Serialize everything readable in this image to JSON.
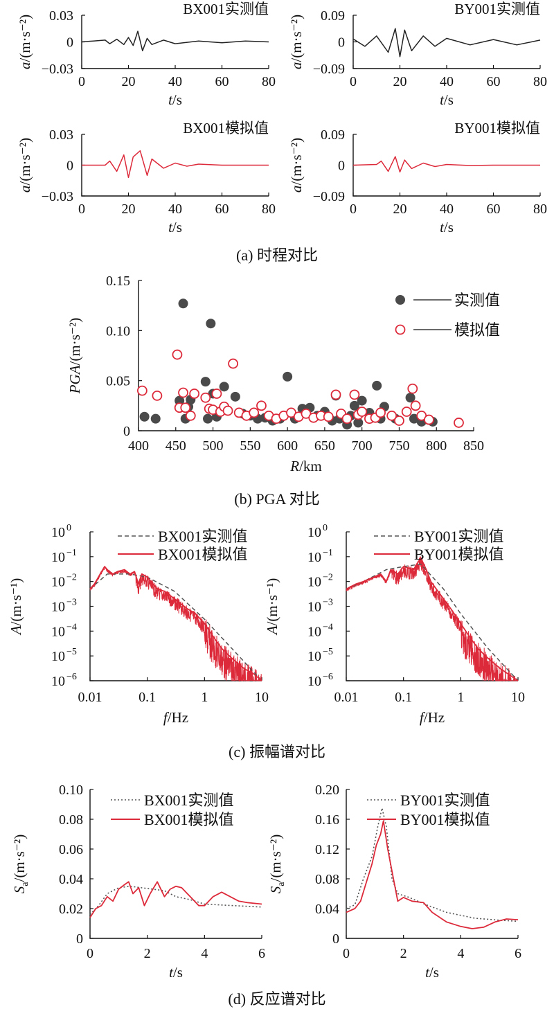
{
  "captions": {
    "a": "(a) 时程对比",
    "b": "(b) PGA 对比",
    "c": "(c) 振幅谱对比",
    "d": "(d) 反应谱对比"
  },
  "colors": {
    "measured": "#222222",
    "simulated": "#dd2a3a",
    "dashed": "#555555",
    "axis": "#111111"
  },
  "chart_data": [
    {
      "id": "a1",
      "type": "line",
      "title": "BX001实测值",
      "xlabel": "t/s",
      "ylabel": "a/(m·s⁻²)",
      "xlim": [
        0,
        80
      ],
      "ylim": [
        -0.03,
        0.03
      ],
      "xticks": [
        0,
        20,
        40,
        60,
        80
      ],
      "yticks": [
        0.03,
        0,
        -0.03
      ],
      "ytick_labels": [
        "0.03",
        "0",
        "−0.03"
      ],
      "series": [
        {
          "kind": "measured",
          "x": [
            0,
            5,
            10,
            12,
            15,
            18,
            20,
            22,
            24,
            26,
            28,
            30,
            35,
            40,
            50,
            60,
            70,
            80
          ],
          "y": [
            0,
            0.001,
            0.002,
            -0.002,
            0.003,
            -0.003,
            0.005,
            -0.004,
            0.012,
            -0.01,
            0.004,
            -0.003,
            0.002,
            -0.002,
            0.001,
            -0.001,
            0.001,
            0
          ]
        }
      ]
    },
    {
      "id": "a2",
      "type": "line",
      "title": "BY001实测值",
      "xlabel": "t/s",
      "ylabel": "a/(m·s⁻²)",
      "xlim": [
        0,
        80
      ],
      "ylim": [
        -0.09,
        0.09
      ],
      "xticks": [
        0,
        20,
        40,
        60,
        80
      ],
      "yticks": [
        0.09,
        0,
        -0.09
      ],
      "ytick_labels": [
        "0.09",
        "0",
        "−0.09"
      ],
      "series": [
        {
          "kind": "measured",
          "x": [
            0,
            5,
            10,
            15,
            18,
            20,
            22,
            25,
            30,
            35,
            40,
            50,
            60,
            70,
            80
          ],
          "y": [
            0.01,
            -0.015,
            0.02,
            -0.035,
            0.045,
            -0.05,
            0.04,
            -0.03,
            0.02,
            -0.015,
            0.012,
            -0.01,
            0.008,
            -0.01,
            0.006
          ]
        }
      ]
    },
    {
      "id": "a3",
      "type": "line",
      "title": "BX001模拟值",
      "xlabel": "t/s",
      "ylabel": "a/(m·s⁻²)",
      "xlim": [
        0,
        80
      ],
      "ylim": [
        -0.03,
        0.03
      ],
      "xticks": [
        0,
        20,
        40,
        60,
        80
      ],
      "yticks": [
        0.03,
        0,
        -0.03
      ],
      "ytick_labels": [
        "0.03",
        "0",
        "−0.03"
      ],
      "series": [
        {
          "kind": "simulated",
          "x": [
            0,
            10,
            12,
            15,
            18,
            20,
            22,
            25,
            28,
            30,
            35,
            40,
            45,
            50,
            60,
            80
          ],
          "y": [
            0,
            0,
            0.004,
            -0.006,
            0.01,
            -0.012,
            0.008,
            0.014,
            -0.01,
            0.006,
            -0.003,
            0.002,
            -0.001,
            0.001,
            0,
            0
          ]
        }
      ]
    },
    {
      "id": "a4",
      "type": "line",
      "title": "BY001模拟值",
      "xlabel": "t/s",
      "ylabel": "a/(m·s⁻²)",
      "xlim": [
        0,
        80
      ],
      "ylim": [
        -0.09,
        0.09
      ],
      "xticks": [
        0,
        20,
        40,
        60,
        80
      ],
      "yticks": [
        0.09,
        0,
        -0.09
      ],
      "ytick_labels": [
        "0.09",
        "0",
        "−0.09"
      ],
      "series": [
        {
          "kind": "simulated",
          "x": [
            0,
            10,
            12,
            15,
            18,
            20,
            22,
            25,
            30,
            35,
            40,
            50,
            60,
            80
          ],
          "y": [
            0,
            0.002,
            0.012,
            -0.018,
            0.025,
            -0.02,
            0.015,
            -0.01,
            0.006,
            -0.004,
            0.002,
            -0.001,
            0,
            0
          ]
        }
      ]
    },
    {
      "id": "b",
      "type": "scatter",
      "xlabel": "R/km",
      "ylabel": "PGA/(m·s⁻²)",
      "xlim": [
        400,
        850
      ],
      "ylim": [
        0,
        0.15
      ],
      "xticks": [
        400,
        450,
        500,
        550,
        600,
        650,
        700,
        750,
        800,
        850
      ],
      "yticks": [
        0,
        0.05,
        0.1,
        0.15
      ],
      "ytick_labels": [
        "0",
        "0.05",
        "0.10",
        "0.15"
      ],
      "legend": {
        "position": "top-right",
        "entries": [
          "实测值",
          "模拟值"
        ]
      },
      "series": [
        {
          "name": "实测值",
          "kind": "measured",
          "x": [
            408,
            423,
            455,
            460,
            463,
            467,
            470,
            490,
            493,
            497,
            500,
            505,
            515,
            520,
            530,
            540,
            550,
            560,
            570,
            580,
            590,
            600,
            610,
            620,
            625,
            630,
            640,
            650,
            660,
            665,
            670,
            680,
            685,
            690,
            695,
            700,
            710,
            720,
            725,
            730,
            745,
            765,
            770,
            780,
            795
          ],
          "y": [
            0.014,
            0.012,
            0.03,
            0.127,
            0.012,
            0.024,
            0.031,
            0.049,
            0.012,
            0.107,
            0.037,
            0.014,
            0.044,
            0.02,
            0.034,
            0.017,
            0.015,
            0.012,
            0.013,
            0.01,
            0.012,
            0.054,
            0.012,
            0.022,
            0.018,
            0.023,
            0.015,
            0.019,
            0.01,
            0.035,
            0.012,
            0.006,
            0.015,
            0.025,
            0.008,
            0.03,
            0.018,
            0.045,
            0.012,
            0.024,
            0.012,
            0.033,
            0.012,
            0.009,
            0.009
          ]
        },
        {
          "name": "模拟值",
          "kind": "simulated",
          "x": [
            405,
            425,
            452,
            455,
            460,
            463,
            470,
            475,
            490,
            495,
            500,
            505,
            510,
            515,
            520,
            527,
            535,
            545,
            555,
            565,
            575,
            585,
            595,
            605,
            615,
            625,
            635,
            645,
            655,
            665,
            672,
            680,
            690,
            695,
            700,
            710,
            718,
            725,
            740,
            750,
            760,
            768,
            772,
            780,
            790,
            830
          ],
          "y": [
            0.04,
            0.035,
            0.076,
            0.023,
            0.038,
            0.023,
            0.015,
            0.037,
            0.033,
            0.022,
            0.021,
            0.037,
            0.019,
            0.024,
            0.02,
            0.067,
            0.018,
            0.015,
            0.018,
            0.025,
            0.015,
            0.012,
            0.015,
            0.018,
            0.014,
            0.017,
            0.013,
            0.015,
            0.014,
            0.036,
            0.017,
            0.012,
            0.036,
            0.016,
            0.019,
            0.012,
            0.013,
            0.018,
            0.015,
            0.01,
            0.019,
            0.042,
            0.025,
            0.015,
            0.011,
            0.008
          ]
        }
      ]
    },
    {
      "id": "c1",
      "type": "line",
      "xlabel": "f/Hz",
      "ylabel": "A/(m·s⁻¹)",
      "xscale": "log",
      "yscale": "log",
      "xlim": [
        0.01,
        10
      ],
      "ylim": [
        1e-06,
        1
      ],
      "xticks": [
        0.01,
        0.1,
        1,
        10
      ],
      "xtick_labels": [
        "0.01",
        "0.1",
        "1",
        "10"
      ],
      "yticks": [
        1,
        0.1,
        0.01,
        0.001,
        0.0001,
        1e-05,
        1e-06
      ],
      "ytick_base": [
        "10",
        "10",
        "10",
        "10",
        "10",
        "10",
        "10"
      ],
      "ytick_exp": [
        "0",
        "−1",
        "−2",
        "−3",
        "−4",
        "−5",
        "−6"
      ],
      "legend": {
        "position": "top-right",
        "entries": [
          "BX001实测值",
          "BX001模拟值"
        ]
      },
      "series": [
        {
          "name": "BX001实测值",
          "kind": "dashed",
          "x": [
            0.01,
            0.02,
            0.05,
            0.1,
            0.3,
            1,
            3,
            10
          ],
          "y": [
            0.005,
            0.02,
            0.02,
            0.015,
            0.004,
            0.0003,
            2e-05,
            1e-06
          ]
        },
        {
          "name": "BX001模拟值",
          "kind": "simulated",
          "x": [
            0.01,
            0.012,
            0.015,
            0.018,
            0.02,
            0.025,
            0.03,
            0.04,
            0.05,
            0.06,
            0.07,
            0.08,
            0.1,
            0.15,
            0.2,
            0.3,
            0.5,
            0.7,
            1,
            1.5,
            2,
            3,
            5,
            7,
            10
          ],
          "y": [
            0.005,
            0.008,
            0.02,
            0.04,
            0.03,
            0.02,
            0.025,
            0.03,
            0.02,
            0.025,
            0.008,
            0.02,
            0.015,
            0.005,
            0.004,
            0.002,
            0.0008,
            0.0005,
            0.0002,
            5e-05,
            2e-05,
            8e-06,
            3e-06,
            2e-06,
            1e-06
          ]
        }
      ]
    },
    {
      "id": "c2",
      "type": "line",
      "xlabel": "f/Hz",
      "ylabel": "A/(m·s⁻¹)",
      "xscale": "log",
      "yscale": "log",
      "xlim": [
        0.01,
        10
      ],
      "ylim": [
        1e-06,
        1
      ],
      "xticks": [
        0.01,
        0.1,
        1,
        10
      ],
      "xtick_labels": [
        "0.01",
        "0.1",
        "1",
        "10"
      ],
      "yticks": [
        1,
        0.1,
        0.01,
        0.001,
        0.0001,
        1e-05,
        1e-06
      ],
      "ytick_base": [
        "10",
        "10",
        "10",
        "10",
        "10",
        "10",
        "10"
      ],
      "ytick_exp": [
        "0",
        "−1",
        "−2",
        "−3",
        "−4",
        "−5",
        "−6"
      ],
      "legend": {
        "position": "top-right",
        "entries": [
          "BY001实测值",
          "BY001模拟值"
        ]
      },
      "series": [
        {
          "name": "BY001实测值",
          "kind": "dashed",
          "x": [
            0.01,
            0.02,
            0.05,
            0.1,
            0.2,
            0.5,
            1,
            3,
            10
          ],
          "y": [
            0.005,
            0.01,
            0.03,
            0.04,
            0.05,
            0.005,
            0.0005,
            2e-05,
            1e-06
          ]
        },
        {
          "name": "BY001模拟值",
          "kind": "simulated",
          "x": [
            0.01,
            0.015,
            0.02,
            0.03,
            0.04,
            0.05,
            0.06,
            0.08,
            0.1,
            0.15,
            0.2,
            0.25,
            0.3,
            0.5,
            0.7,
            1,
            1.5,
            2,
            3,
            5,
            10
          ],
          "y": [
            0.005,
            0.008,
            0.01,
            0.015,
            0.02,
            0.01,
            0.03,
            0.02,
            0.04,
            0.03,
            0.09,
            0.03,
            0.01,
            0.002,
            0.0007,
            0.0002,
            5e-05,
            2e-05,
            8e-06,
            3e-06,
            1e-06
          ]
        }
      ]
    },
    {
      "id": "d1",
      "type": "line",
      "xlabel": "t/s",
      "ylabel": "Sa/(m·s⁻²)",
      "xlim": [
        0,
        6
      ],
      "ylim": [
        0,
        0.1
      ],
      "xticks": [
        0,
        2,
        4,
        6
      ],
      "yticks": [
        0,
        0.02,
        0.04,
        0.06,
        0.08,
        0.1
      ],
      "ytick_labels": [
        "0",
        "0.02",
        "0.04",
        "0.06",
        "0.08",
        "0.10"
      ],
      "legend": {
        "position": "top-right",
        "entries": [
          "BX001实测值",
          "BX001模拟值"
        ]
      },
      "series": [
        {
          "name": "BX001实测值",
          "kind": "dotted",
          "x": [
            0,
            0.3,
            0.6,
            1.0,
            1.4,
            1.8,
            2.2,
            2.6,
            3.0,
            3.5,
            4.0,
            5.0,
            6.0
          ],
          "y": [
            0.016,
            0.022,
            0.03,
            0.034,
            0.035,
            0.034,
            0.033,
            0.032,
            0.028,
            0.026,
            0.023,
            0.022,
            0.021
          ]
        },
        {
          "name": "BX001模拟值",
          "kind": "simulated",
          "x": [
            0,
            0.2,
            0.4,
            0.6,
            0.8,
            1.0,
            1.2,
            1.35,
            1.5,
            1.7,
            1.9,
            2.1,
            2.35,
            2.6,
            2.8,
            3.0,
            3.2,
            3.5,
            3.8,
            4.0,
            4.3,
            4.6,
            4.9,
            5.2,
            5.5,
            6.0
          ],
          "y": [
            0.014,
            0.02,
            0.022,
            0.028,
            0.025,
            0.033,
            0.036,
            0.038,
            0.03,
            0.034,
            0.022,
            0.03,
            0.038,
            0.028,
            0.033,
            0.035,
            0.034,
            0.028,
            0.022,
            0.022,
            0.028,
            0.031,
            0.028,
            0.025,
            0.024,
            0.023
          ]
        }
      ]
    },
    {
      "id": "d2",
      "type": "line",
      "xlabel": "t/s",
      "ylabel": "Sa/(m·s⁻²)",
      "xlim": [
        0,
        6
      ],
      "ylim": [
        0,
        0.2
      ],
      "xticks": [
        0,
        2,
        4,
        6
      ],
      "yticks": [
        0,
        0.04,
        0.08,
        0.12,
        0.16,
        0.2
      ],
      "ytick_labels": [
        "0",
        "0.04",
        "0.08",
        "0.12",
        "0.16",
        "0.20"
      ],
      "legend": {
        "position": "top-right",
        "entries": [
          "BY001实测值",
          "BY001模拟值"
        ]
      },
      "series": [
        {
          "name": "BY001实测值",
          "kind": "dotted",
          "x": [
            0,
            0.3,
            0.6,
            0.9,
            1.1,
            1.25,
            1.4,
            1.6,
            1.8,
            2.2,
            2.8,
            3.5,
            4.5,
            5.5,
            6.0
          ],
          "y": [
            0.04,
            0.045,
            0.08,
            0.11,
            0.15,
            0.175,
            0.15,
            0.08,
            0.06,
            0.055,
            0.045,
            0.035,
            0.027,
            0.024,
            0.023
          ]
        },
        {
          "name": "BY001模拟值",
          "kind": "simulated",
          "x": [
            0,
            0.3,
            0.5,
            0.7,
            0.9,
            1.05,
            1.2,
            1.3,
            1.45,
            1.6,
            1.8,
            2.0,
            2.3,
            2.7,
            3.0,
            3.5,
            4.0,
            4.4,
            4.8,
            5.2,
            5.6,
            6.0
          ],
          "y": [
            0.035,
            0.04,
            0.05,
            0.075,
            0.1,
            0.125,
            0.14,
            0.158,
            0.12,
            0.09,
            0.05,
            0.055,
            0.05,
            0.048,
            0.035,
            0.022,
            0.016,
            0.013,
            0.015,
            0.022,
            0.026,
            0.025
          ]
        }
      ]
    }
  ]
}
